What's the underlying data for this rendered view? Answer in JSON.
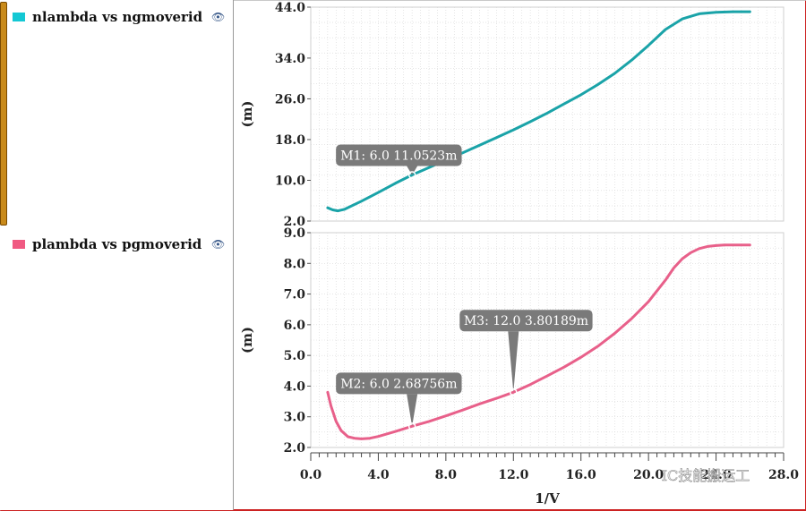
{
  "legend": [
    {
      "label": "nlambda vs ngmoverid",
      "color": "#14b4c8",
      "icon": "eye-icon"
    },
    {
      "label": "plambda vs pgmoverid",
      "color": "#f05a82",
      "icon": "eye-icon"
    }
  ],
  "watermark": "IC技能搬运工",
  "chart_data": [
    {
      "type": "line",
      "ylabel": "(m)",
      "yticks": [
        "2.0",
        "10.0",
        "18.0",
        "26.0",
        "34.0",
        "44.0"
      ],
      "ylim": [
        2.0,
        44.0
      ],
      "xlim": [
        0.0,
        28.0
      ],
      "grid": true,
      "series": [
        {
          "name": "nlambda vs ngmoverid",
          "color": "#1aa3a8",
          "x": [
            1.0,
            1.3,
            1.6,
            2.0,
            3.0,
            4.0,
            5.0,
            6.0,
            7.0,
            8.0,
            9.0,
            10.0,
            11.0,
            12.0,
            13.0,
            14.0,
            15.0,
            16.0,
            17.0,
            18.0,
            19.0,
            20.0,
            21.0,
            22.0,
            23.0,
            24.0,
            25.0,
            26.0
          ],
          "y": [
            4.6,
            4.2,
            4.0,
            4.3,
            5.9,
            7.6,
            9.4,
            11.05,
            12.5,
            14.0,
            15.4,
            16.9,
            18.4,
            19.9,
            21.5,
            23.2,
            25.0,
            26.8,
            28.8,
            31.0,
            33.6,
            36.5,
            39.6,
            41.7,
            42.7,
            43.0,
            43.1,
            43.1
          ]
        }
      ],
      "markers": [
        {
          "label": "M1: 6.0 11.0523m",
          "x": 6.0,
          "y": 11.0523
        }
      ]
    },
    {
      "type": "line",
      "ylabel": "(m)",
      "xlabel": "1/V",
      "yticks": [
        "2.0",
        "3.0",
        "4.0",
        "5.0",
        "6.0",
        "7.0",
        "8.0",
        "9.0"
      ],
      "ylim": [
        2.0,
        9.0
      ],
      "xticks": [
        "0.0",
        "4.0",
        "8.0",
        "12.0",
        "16.0",
        "20.0",
        "24.0",
        "28.0"
      ],
      "xlim": [
        0.0,
        28.0
      ],
      "grid": true,
      "series": [
        {
          "name": "plambda vs pgmoverid",
          "color": "#e8608a",
          "x": [
            1.0,
            1.2,
            1.5,
            1.8,
            2.2,
            2.6,
            3.0,
            3.5,
            4.0,
            5.0,
            6.0,
            7.0,
            8.0,
            9.0,
            10.0,
            11.0,
            12.0,
            13.0,
            14.0,
            15.0,
            16.0,
            17.0,
            18.0,
            19.0,
            20.0,
            21.0,
            21.5,
            22.0,
            22.5,
            23.0,
            23.5,
            24.0,
            24.5,
            25.0,
            26.0
          ],
          "y": [
            3.8,
            3.35,
            2.85,
            2.55,
            2.35,
            2.3,
            2.28,
            2.3,
            2.36,
            2.52,
            2.69,
            2.85,
            3.03,
            3.22,
            3.42,
            3.6,
            3.8,
            4.05,
            4.33,
            4.62,
            4.94,
            5.3,
            5.72,
            6.2,
            6.75,
            7.45,
            7.85,
            8.15,
            8.35,
            8.48,
            8.55,
            8.58,
            8.6,
            8.6,
            8.6
          ]
        }
      ],
      "markers": [
        {
          "label": "M2: 6.0 2.68756m",
          "x": 6.0,
          "y": 2.68756
        },
        {
          "label": "M3: 12.0 3.80189m",
          "x": 12.0,
          "y": 3.80189
        }
      ]
    }
  ]
}
